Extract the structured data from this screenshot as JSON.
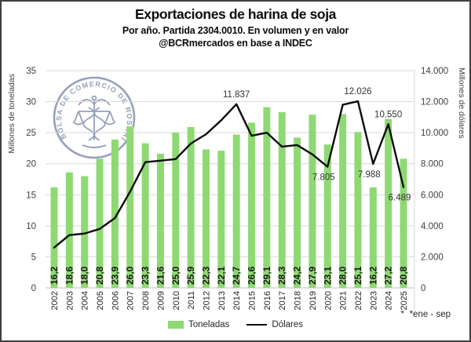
{
  "header": {
    "title": "Exportaciones de harina de soja",
    "subtitle_line1": "Por año. Partida 2304.0010. En volumen y en valor",
    "subtitle_line2": "@BCRmercados en base a INDEC"
  },
  "logo": {
    "text": "BOLSA DE COMERCIO DE ROSARIO",
    "color": "#56678f"
  },
  "colors": {
    "bar_green": "#8FD973",
    "line_black": "#0d0d0d",
    "grid": "#d9d9d9",
    "axis": "#bfbfbf",
    "text_dark": "#404040"
  },
  "chart_data": {
    "type": "bar+line",
    "categories": [
      "2002",
      "2003",
      "2004",
      "2005",
      "2006",
      "2007",
      "2008",
      "2009",
      "2010",
      "2011",
      "2012",
      "2013",
      "2014",
      "2015",
      "2016",
      "2017",
      "2018",
      "2019",
      "2020",
      "2021",
      "2022",
      "2023",
      "2024",
      "*2025"
    ],
    "series": [
      {
        "name": "Toneladas",
        "type": "bar",
        "axis": "left",
        "color": "#8FD973",
        "values": [
          16.2,
          18.6,
          18.0,
          20.8,
          23.9,
          26.0,
          23.3,
          21.6,
          25.0,
          25.9,
          22.3,
          22.1,
          24.7,
          26.6,
          29.1,
          28.3,
          24.2,
          27.9,
          23.1,
          28.0,
          25.1,
          16.2,
          27.2,
          20.8
        ],
        "labels": [
          "16,2",
          "18,6",
          "18,0",
          "20,8",
          "23,9",
          "26,0",
          "23,3",
          "21,6",
          "25,0",
          "25,9",
          "22,3",
          "22,1",
          "24,7",
          "26,6",
          "29,1",
          "28,3",
          "24,2",
          "27,9",
          "23,1",
          "28,0",
          "25,1",
          "16,2",
          "27,2",
          "20,8"
        ]
      },
      {
        "name": "Dólares",
        "type": "line",
        "axis": "right",
        "color": "#0d0d0d",
        "values": [
          2600,
          3400,
          3500,
          3800,
          4500,
          6200,
          8100,
          8200,
          8300,
          9300,
          9900,
          10800,
          11837,
          9800,
          10000,
          9100,
          9200,
          8600,
          7805,
          11800,
          12026,
          7988,
          10550,
          6489
        ]
      }
    ],
    "annotations": [
      {
        "category": "2014",
        "text": "11.837",
        "value": 11837,
        "placement": "above"
      },
      {
        "category": "2020",
        "text": "7.805",
        "value": 7805,
        "placement": "below"
      },
      {
        "category": "2022",
        "text": "12.026",
        "value": 12026,
        "placement": "above"
      },
      {
        "category": "2023",
        "text": "7.988",
        "value": 7988,
        "placement": "below"
      },
      {
        "category": "2024",
        "text": "10.550",
        "value": 10550,
        "placement": "above"
      },
      {
        "category": "*2025",
        "text": "6.489",
        "value": 6489,
        "placement": "below"
      }
    ],
    "left_axis": {
      "label": "Millones de toneladas",
      "max": 35,
      "ticks": [
        {
          "v": 0,
          "t": "0"
        },
        {
          "v": 5,
          "t": "5"
        },
        {
          "v": 10,
          "t": "10"
        },
        {
          "v": 15,
          "t": "15"
        },
        {
          "v": 20,
          "t": "20"
        },
        {
          "v": 25,
          "t": "25"
        },
        {
          "v": 30,
          "t": "30"
        },
        {
          "v": 35,
          "t": "35"
        }
      ]
    },
    "right_axis": {
      "label": "Millones de dólares",
      "max": 14000,
      "ticks": [
        {
          "v": 0,
          "t": "0"
        },
        {
          "v": 2000,
          "t": "2.000"
        },
        {
          "v": 4000,
          "t": "4.000"
        },
        {
          "v": 6000,
          "t": "6.000"
        },
        {
          "v": 8000,
          "t": "8.000"
        },
        {
          "v": 10000,
          "t": "10.000"
        },
        {
          "v": 12000,
          "t": "12.000"
        },
        {
          "v": 14000,
          "t": "14.000"
        }
      ]
    },
    "grid": true,
    "legend_position": "bottom",
    "footnote": "*ene - sep"
  }
}
